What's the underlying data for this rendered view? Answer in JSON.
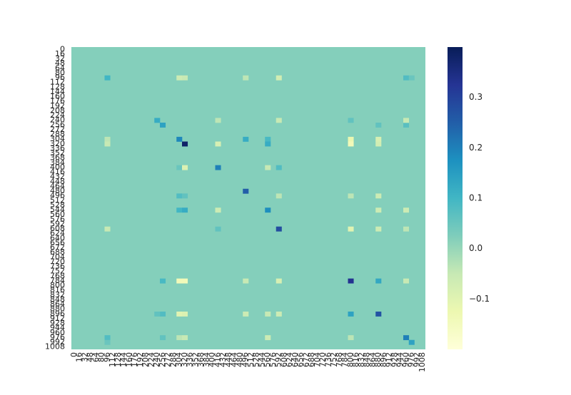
{
  "chart_data": {
    "type": "heatmap",
    "title": "",
    "xlabel": "",
    "ylabel": "",
    "grid": false,
    "x_tick_labels": [
      "0",
      "16",
      "32",
      "48",
      "64",
      "80",
      "96",
      "112",
      "128",
      "144",
      "160",
      "176",
      "192",
      "208",
      "224",
      "240",
      "256",
      "272",
      "288",
      "304",
      "320",
      "336",
      "352",
      "368",
      "384",
      "400",
      "416",
      "432",
      "448",
      "464",
      "480",
      "496",
      "512",
      "528",
      "544",
      "560",
      "576",
      "592",
      "608",
      "624",
      "640",
      "656",
      "672",
      "688",
      "704",
      "720",
      "736",
      "752",
      "768",
      "784",
      "800",
      "816",
      "832",
      "848",
      "864",
      "880",
      "896",
      "912",
      "928",
      "944",
      "960",
      "976",
      "992",
      "1008"
    ],
    "y_tick_labels": [
      "0",
      "16",
      "32",
      "48",
      "64",
      "80",
      "96",
      "112",
      "128",
      "144",
      "160",
      "176",
      "192",
      "208",
      "224",
      "240",
      "256",
      "272",
      "288",
      "304",
      "320",
      "336",
      "352",
      "368",
      "384",
      "400",
      "416",
      "432",
      "448",
      "464",
      "480",
      "496",
      "512",
      "528",
      "544",
      "560",
      "576",
      "592",
      "608",
      "624",
      "640",
      "656",
      "672",
      "688",
      "704",
      "720",
      "736",
      "752",
      "768",
      "784",
      "800",
      "816",
      "832",
      "848",
      "864",
      "880",
      "896",
      "912",
      "928",
      "944",
      "960",
      "976",
      "992",
      "1008"
    ],
    "colorbar": {
      "ticks": [
        0.3,
        0.2,
        0.1,
        0.0,
        -0.1
      ],
      "tick_labels": [
        "0.3",
        "0.2",
        "0.1",
        "0.0",
        "−0.1"
      ],
      "range": [
        -0.2,
        0.4
      ],
      "colormap_stops": [
        "#ffffd9",
        "#edf8b1",
        "#c7e9b4",
        "#7fcdbb",
        "#41b6c4",
        "#1d91c0",
        "#225ea8",
        "#253494",
        "#081d58"
      ]
    },
    "background_value": 0.02,
    "highlighted_cells": [
      {
        "x": 320,
        "y": 320,
        "value": 0.38
      },
      {
        "x": 800,
        "y": 784,
        "value": 0.33
      },
      {
        "x": 880,
        "y": 896,
        "value": 0.27
      },
      {
        "x": 592,
        "y": 608,
        "value": 0.28
      },
      {
        "x": 496,
        "y": 480,
        "value": 0.25
      },
      {
        "x": 416,
        "y": 400,
        "value": 0.2
      },
      {
        "x": 560,
        "y": 544,
        "value": 0.18
      },
      {
        "x": 304,
        "y": 304,
        "value": 0.19
      },
      {
        "x": 960,
        "y": 976,
        "value": 0.2
      },
      {
        "x": 976,
        "y": 992,
        "value": 0.14
      },
      {
        "x": 96,
        "y": 96,
        "value": 0.1
      },
      {
        "x": 256,
        "y": 256,
        "value": 0.14
      },
      {
        "x": 240,
        "y": 240,
        "value": 0.12
      },
      {
        "x": 960,
        "y": 96,
        "value": 0.08
      },
      {
        "x": 976,
        "y": 96,
        "value": 0.05
      },
      {
        "x": 800,
        "y": 240,
        "value": 0.06
      },
      {
        "x": 880,
        "y": 256,
        "value": 0.06
      },
      {
        "x": 960,
        "y": 256,
        "value": 0.07
      },
      {
        "x": 496,
        "y": 304,
        "value": 0.12
      },
      {
        "x": 560,
        "y": 304,
        "value": 0.09
      },
      {
        "x": 560,
        "y": 320,
        "value": 0.12
      },
      {
        "x": 304,
        "y": 400,
        "value": 0.05
      },
      {
        "x": 592,
        "y": 400,
        "value": 0.08
      },
      {
        "x": 304,
        "y": 496,
        "value": 0.08
      },
      {
        "x": 320,
        "y": 496,
        "value": 0.06
      },
      {
        "x": 304,
        "y": 544,
        "value": 0.1
      },
      {
        "x": 320,
        "y": 544,
        "value": 0.12
      },
      {
        "x": 416,
        "y": 608,
        "value": 0.06
      },
      {
        "x": 256,
        "y": 784,
        "value": 0.09
      },
      {
        "x": 880,
        "y": 784,
        "value": 0.13
      },
      {
        "x": 800,
        "y": 896,
        "value": 0.14
      },
      {
        "x": 256,
        "y": 896,
        "value": 0.08
      },
      {
        "x": 240,
        "y": 896,
        "value": 0.06
      },
      {
        "x": 96,
        "y": 976,
        "value": 0.08
      },
      {
        "x": 256,
        "y": 976,
        "value": 0.06
      },
      {
        "x": 96,
        "y": 992,
        "value": 0.05
      },
      {
        "x": 304,
        "y": 96,
        "value": -0.06
      },
      {
        "x": 320,
        "y": 96,
        "value": -0.05
      },
      {
        "x": 496,
        "y": 96,
        "value": -0.04
      },
      {
        "x": 592,
        "y": 96,
        "value": -0.07
      },
      {
        "x": 800,
        "y": 304,
        "value": -0.12
      },
      {
        "x": 800,
        "y": 320,
        "value": -0.14
      },
      {
        "x": 880,
        "y": 304,
        "value": -0.08
      },
      {
        "x": 880,
        "y": 320,
        "value": -0.07
      },
      {
        "x": 416,
        "y": 320,
        "value": -0.08
      },
      {
        "x": 96,
        "y": 304,
        "value": -0.04
      },
      {
        "x": 96,
        "y": 320,
        "value": -0.05
      },
      {
        "x": 320,
        "y": 400,
        "value": -0.09
      },
      {
        "x": 560,
        "y": 400,
        "value": -0.05
      },
      {
        "x": 592,
        "y": 496,
        "value": -0.04
      },
      {
        "x": 800,
        "y": 496,
        "value": -0.04
      },
      {
        "x": 880,
        "y": 496,
        "value": -0.06
      },
      {
        "x": 416,
        "y": 544,
        "value": -0.06
      },
      {
        "x": 880,
        "y": 544,
        "value": -0.06
      },
      {
        "x": 960,
        "y": 544,
        "value": -0.06
      },
      {
        "x": 96,
        "y": 608,
        "value": -0.05
      },
      {
        "x": 800,
        "y": 608,
        "value": -0.1
      },
      {
        "x": 880,
        "y": 608,
        "value": -0.06
      },
      {
        "x": 960,
        "y": 608,
        "value": -0.04
      },
      {
        "x": 304,
        "y": 784,
        "value": -0.14
      },
      {
        "x": 320,
        "y": 784,
        "value": -0.14
      },
      {
        "x": 592,
        "y": 784,
        "value": -0.08
      },
      {
        "x": 496,
        "y": 784,
        "value": -0.05
      },
      {
        "x": 960,
        "y": 784,
        "value": -0.05
      },
      {
        "x": 304,
        "y": 896,
        "value": -0.1
      },
      {
        "x": 320,
        "y": 896,
        "value": -0.09
      },
      {
        "x": 496,
        "y": 896,
        "value": -0.06
      },
      {
        "x": 560,
        "y": 896,
        "value": -0.05
      },
      {
        "x": 592,
        "y": 896,
        "value": -0.06
      },
      {
        "x": 560,
        "y": 976,
        "value": -0.06
      },
      {
        "x": 800,
        "y": 976,
        "value": -0.04
      },
      {
        "x": 416,
        "y": 240,
        "value": -0.04
      },
      {
        "x": 592,
        "y": 240,
        "value": -0.05
      },
      {
        "x": 960,
        "y": 240,
        "value": -0.05
      },
      {
        "x": 304,
        "y": 976,
        "value": -0.04
      },
      {
        "x": 320,
        "y": 976,
        "value": -0.05
      }
    ]
  }
}
